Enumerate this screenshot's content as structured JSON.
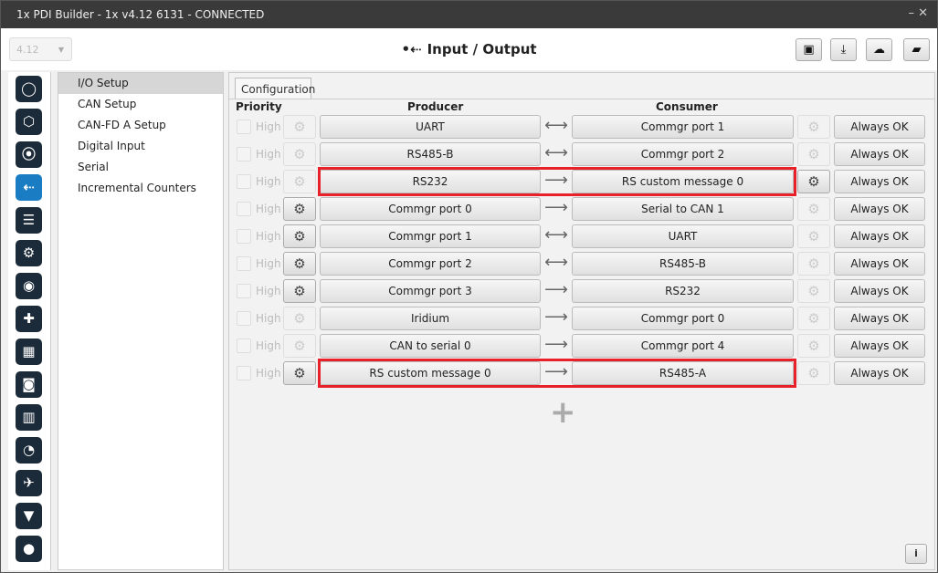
{
  "window": {
    "title": "1x PDI Builder - 1x v4.12 6131 - CONNECTED",
    "controls": "– ✕"
  },
  "header": {
    "version": "4.12",
    "title": "Input / Output",
    "title_icon": "usb-icon",
    "toolbar": [
      "save-icon",
      "download-icon",
      "cloud-download-icon",
      "folder-open-icon"
    ]
  },
  "rail": {
    "items": [
      {
        "icon": "power-icon",
        "glyph": "◯"
      },
      {
        "icon": "network-icon",
        "glyph": "⬡"
      },
      {
        "icon": "rss-icon",
        "glyph": "⦿"
      },
      {
        "icon": "usb-icon",
        "glyph": "⇠",
        "active": true
      },
      {
        "icon": "sliders-icon",
        "glyph": "☰"
      },
      {
        "icon": "gears-icon",
        "glyph": "⚙"
      },
      {
        "icon": "podcast-icon",
        "glyph": "◉"
      },
      {
        "icon": "gamepad-icon",
        "glyph": "✚"
      },
      {
        "icon": "grid-icon",
        "glyph": "▦"
      },
      {
        "icon": "camera-icon",
        "glyph": "◙"
      },
      {
        "icon": "chart-icon",
        "glyph": "▥"
      },
      {
        "icon": "gauge-icon",
        "glyph": "◔"
      },
      {
        "icon": "plane-icon",
        "glyph": "✈"
      },
      {
        "icon": "shield-icon",
        "glyph": "▼"
      },
      {
        "icon": "globe-icon",
        "glyph": "●"
      }
    ]
  },
  "menu": {
    "items": [
      "I/O Setup",
      "CAN Setup",
      "CAN-FD A Setup",
      "Digital Input",
      "Serial",
      "Incremental Counters"
    ],
    "selected": 0
  },
  "config": {
    "tab": "Configuration",
    "headers": {
      "priority": "Priority",
      "producer": "Producer",
      "consumer": "Consumer"
    },
    "rows": [
      {
        "priority": "High",
        "producer": "UART",
        "consumer": "Commgr port 1",
        "arrow": "⟷",
        "pgear": false,
        "cgear": false,
        "status": "Always OK",
        "highlight": false
      },
      {
        "priority": "High",
        "producer": "RS485-B",
        "consumer": "Commgr port 2",
        "arrow": "⟷",
        "pgear": false,
        "cgear": false,
        "status": "Always OK",
        "highlight": false
      },
      {
        "priority": "High",
        "producer": "RS232",
        "consumer": "RS custom message 0",
        "arrow": "⟶",
        "pgear": false,
        "cgear": true,
        "status": "Always OK",
        "highlight": true
      },
      {
        "priority": "High",
        "producer": "Commgr port 0",
        "consumer": "Serial to CAN 1",
        "arrow": "⟶",
        "pgear": true,
        "cgear": false,
        "status": "Always OK",
        "highlight": false
      },
      {
        "priority": "High",
        "producer": "Commgr port 1",
        "consumer": "UART",
        "arrow": "⟷",
        "pgear": true,
        "cgear": false,
        "status": "Always OK",
        "highlight": false
      },
      {
        "priority": "High",
        "producer": "Commgr port 2",
        "consumer": "RS485-B",
        "arrow": "⟷",
        "pgear": true,
        "cgear": false,
        "status": "Always OK",
        "highlight": false
      },
      {
        "priority": "High",
        "producer": "Commgr port 3",
        "consumer": "RS232",
        "arrow": "⟶",
        "pgear": true,
        "cgear": false,
        "status": "Always OK",
        "highlight": false
      },
      {
        "priority": "High",
        "producer": "Iridium",
        "consumer": "Commgr port 0",
        "arrow": "⟶",
        "pgear": false,
        "cgear": false,
        "status": "Always OK",
        "highlight": false
      },
      {
        "priority": "High",
        "producer": "CAN to serial 0",
        "consumer": "Commgr port 4",
        "arrow": "⟶",
        "pgear": false,
        "cgear": false,
        "status": "Always OK",
        "highlight": false
      },
      {
        "priority": "High",
        "producer": "RS custom message 0",
        "consumer": "RS485-A",
        "arrow": "⟶",
        "pgear": true,
        "cgear": false,
        "status": "Always OK",
        "highlight": true
      }
    ],
    "add": "+",
    "info": "i"
  },
  "colors": {
    "accent": "#1a7dc4",
    "rail": "#1c2b39",
    "highlight": "#e8202a"
  }
}
